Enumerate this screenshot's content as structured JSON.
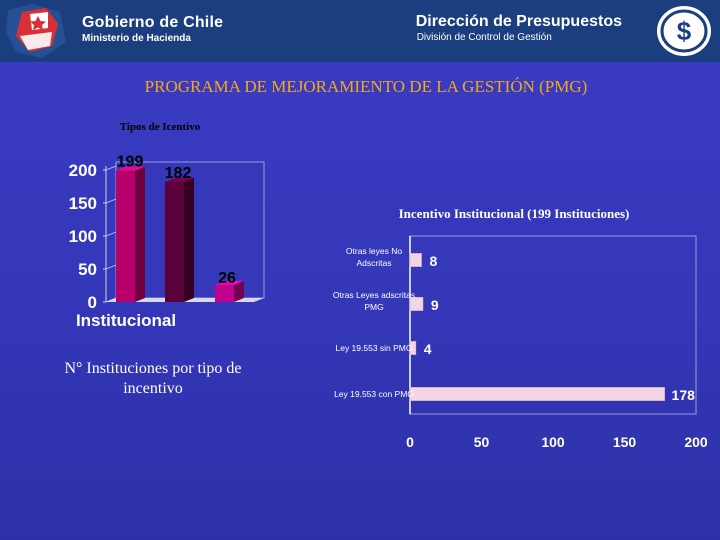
{
  "header": {
    "left_title": "Gobierno de Chile",
    "left_subtitle": "Ministerio de Hacienda",
    "right_title": "Dirección de Presupuestos",
    "right_subtitle": "División de Control de Gestión",
    "left_logo_icon": "chile-flag-star-icon",
    "right_logo_icon": "dipres-seal-icon"
  },
  "title": "PROGRAMA DE MEJORAMIENTO DE LA GESTIÓN (PMG)",
  "left_caption": "N° Instituciones  por tipo de incentivo",
  "chart_data": [
    {
      "type": "bar",
      "title": "Tipos de Icentivo",
      "categories": [
        "",
        "",
        ""
      ],
      "values": [
        199,
        182,
        26
      ],
      "data_labels": [
        "199",
        "182",
        "26"
      ],
      "xlabel": "Institucional",
      "ylim": [
        0,
        200
      ],
      "yticks": [
        "0",
        "50",
        "100",
        "150",
        "200"
      ],
      "colors": [
        "#b8006b",
        "#5a003a",
        "#c0008f"
      ]
    },
    {
      "type": "bar",
      "orientation": "horizontal",
      "title": "Incentivo Institucional (199 Instituciones)",
      "categories": [
        "Otras leyes No Adscritas",
        "Otras Leyes adscritas PMG",
        "Ley 19.553 sin PMG",
        "Ley 19.553 con PMG"
      ],
      "values": [
        8,
        9,
        4,
        178
      ],
      "data_labels": [
        "8",
        "9",
        "4",
        "178"
      ],
      "xlim": [
        0,
        200
      ],
      "xticks": [
        "0",
        "50",
        "100",
        "150",
        "200"
      ],
      "bar_color": "#f2d7e2"
    }
  ]
}
